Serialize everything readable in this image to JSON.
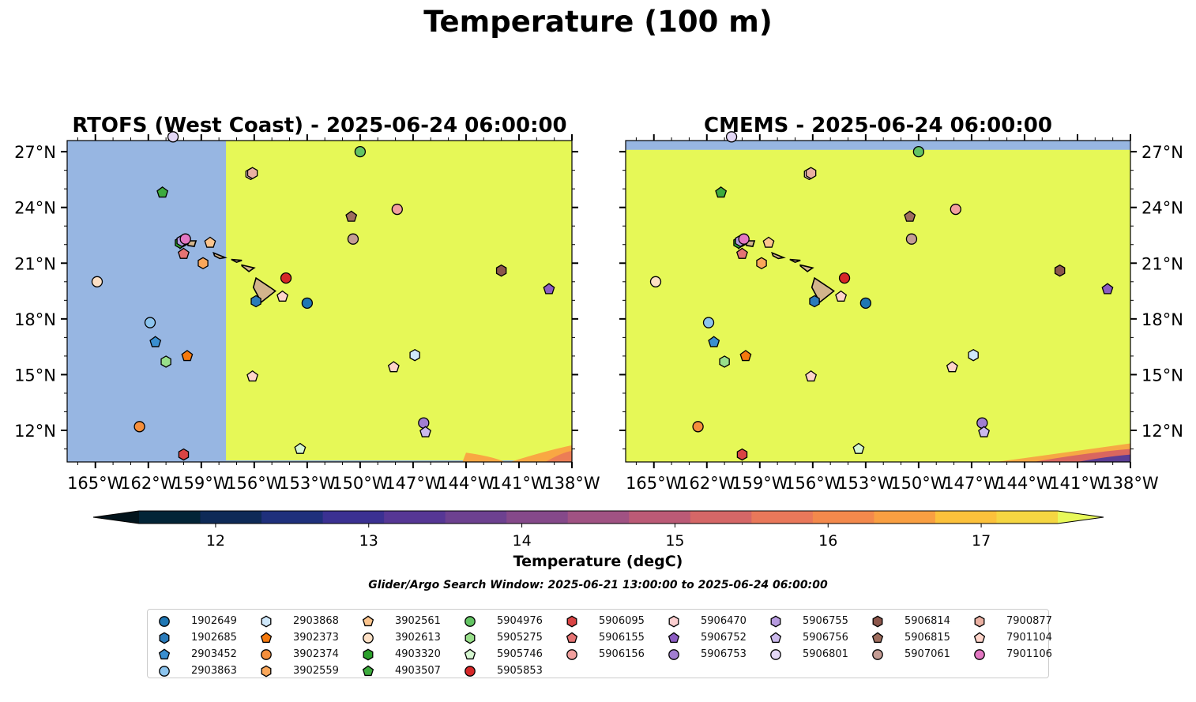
{
  "figure": {
    "title": "Temperature (100 m)",
    "window_note": "Glider/Argo Search Window: 2025-06-21 13:00:00 to 2025-06-24 06:00:00",
    "colorbar": {
      "label": "Temperature (degC)",
      "min": 11.5,
      "max": 17.5,
      "step": 0.5,
      "ticks": [
        "12",
        "13",
        "14",
        "15",
        "16",
        "17"
      ],
      "tick_values": [
        12,
        13,
        14,
        15,
        16,
        17
      ],
      "colors": [
        "#022437",
        "#0e2a57",
        "#1f307c",
        "#3b3192",
        "#563795",
        "#6d4190",
        "#85498a",
        "#a05283",
        "#bb5a76",
        "#d56767",
        "#e9785a",
        "#f3894c",
        "#f99f42",
        "#fcc13b",
        "#f5d642"
      ],
      "over_color": "#e8f95a",
      "under_color": "#03141c"
    }
  },
  "chart_data": [
    {
      "type": "map",
      "title": "RTOFS (West Coast) - 2025-06-24 06:00:00",
      "lon_range": [
        -166.6,
        -138.0
      ],
      "lat_range": [
        10.3,
        27.6
      ],
      "ocean_colors": {
        "land_mask": "#97b6e2",
        "warm": "#e6f857"
      },
      "x_tick_values": [
        -165,
        -162,
        -159,
        -156,
        -153,
        -150,
        -147,
        -144,
        -141,
        -138
      ],
      "x_tick_labels": [
        "165°W",
        "162°W",
        "159°W",
        "156°W",
        "153°W",
        "150°W",
        "147°W",
        "144°W",
        "141°W",
        "138°W"
      ],
      "y_tick_values": [
        12,
        15,
        18,
        21,
        24,
        27
      ],
      "y_tick_labels": [
        "12°N",
        "15°N",
        "18°N",
        "21°N",
        "24°N",
        "27°N"
      ],
      "y_axis_side": "left"
    },
    {
      "type": "map",
      "title": "CMEMS - 2025-06-24 06:00:00",
      "lon_range": [
        -166.6,
        -138.0
      ],
      "lat_range": [
        10.3,
        27.6
      ],
      "ocean_colors": {
        "land_mask": "#97b6e2",
        "warm": "#e6f857"
      },
      "x_tick_values": [
        -165,
        -162,
        -159,
        -156,
        -153,
        -150,
        -147,
        -144,
        -141,
        -138
      ],
      "x_tick_labels": [
        "165°W",
        "162°W",
        "159°W",
        "156°W",
        "153°W",
        "150°W",
        "147°W",
        "144°W",
        "141°W",
        "138°W"
      ],
      "y_tick_values": [
        12,
        15,
        18,
        21,
        24,
        27
      ],
      "y_tick_labels": [
        "12°N",
        "15°N",
        "18°N",
        "21°N",
        "24°N",
        "27°N"
      ],
      "y_axis_side": "right"
    }
  ],
  "floats": [
    {
      "id": "1902649",
      "marker": "circle",
      "color": "#1f77b4",
      "lon": -153.0,
      "lat": 18.85
    },
    {
      "id": "1902685",
      "marker": "hexagon",
      "color": "#2b7bba",
      "lon": -155.9,
      "lat": 18.95
    },
    {
      "id": "2903452",
      "marker": "pentagon",
      "color": "#3a8fd0",
      "lon": -161.6,
      "lat": 16.75
    },
    {
      "id": "2903863",
      "marker": "circle",
      "color": "#8cc4ee",
      "lon": -161.9,
      "lat": 17.8
    },
    {
      "id": "2903868",
      "marker": "hexagon",
      "color": "#cfe8fb",
      "lon": -146.9,
      "lat": 16.05
    },
    {
      "id": "3902373",
      "marker": "pentagon",
      "color": "#f5790e",
      "lon": -159.8,
      "lat": 16.0
    },
    {
      "id": "3902374",
      "marker": "circle",
      "color": "#f58f3c",
      "lon": -162.5,
      "lat": 12.2
    },
    {
      "id": "3902559",
      "marker": "hexagon",
      "color": "#fba75a",
      "lon": -158.9,
      "lat": 21.0
    },
    {
      "id": "3902561",
      "marker": "pentagon",
      "color": "#fbc48d",
      "lon": -158.5,
      "lat": 22.1
    },
    {
      "id": "3902613",
      "marker": "circle",
      "color": "#fde0c5",
      "lon": -164.9,
      "lat": 20.0
    },
    {
      "id": "4903320",
      "marker": "hexagon",
      "color": "#2ca02c",
      "lon": -160.2,
      "lat": 22.1
    },
    {
      "id": "4903507",
      "marker": "pentagon",
      "color": "#3dab3d",
      "lon": -161.2,
      "lat": 24.8
    },
    {
      "id": "4903320b",
      "marker": "hexagon",
      "color": "#2ca02c",
      "lon": -160.0,
      "lat": 22.2
    },
    {
      "id": "5904976",
      "marker": "circle",
      "color": "#63c463",
      "lon": -150.0,
      "lat": 27.0
    },
    {
      "id": "5905275",
      "marker": "hexagon",
      "color": "#98df8a",
      "lon": -161.0,
      "lat": 15.7
    },
    {
      "id": "5905746",
      "marker": "pentagon",
      "color": "#d6f7d1",
      "lon": -153.4,
      "lat": 11.0
    },
    {
      "id": "5905853",
      "marker": "circle",
      "color": "#d62728",
      "lon": -154.2,
      "lat": 20.2
    },
    {
      "id": "5906095",
      "marker": "hexagon",
      "color": "#d94444",
      "lon": -160.0,
      "lat": 10.7
    },
    {
      "id": "5906155",
      "marker": "pentagon",
      "color": "#e57373",
      "lon": -160.0,
      "lat": 21.5
    },
    {
      "id": "5906156",
      "marker": "circle",
      "color": "#f2a09e",
      "lon": -147.9,
      "lat": 23.9
    },
    {
      "id": "5906470",
      "marker": "hexagon",
      "color": "#fccfd0",
      "lon": -156.2,
      "lat": 25.8
    },
    {
      "id": "5906752",
      "marker": "pentagon",
      "color": "#8c5cc2",
      "lon": -139.3,
      "lat": 19.6
    },
    {
      "id": "5906753",
      "marker": "circle",
      "color": "#a17ed1",
      "lon": -146.4,
      "lat": 12.4
    },
    {
      "id": "5906755",
      "marker": "hexagon",
      "color": "#b79be0",
      "lon": -160.1,
      "lat": 22.2
    },
    {
      "id": "5906756",
      "marker": "pentagon",
      "color": "#cbb9ec",
      "lon": -146.3,
      "lat": 11.9
    },
    {
      "id": "5906801",
      "marker": "circle",
      "color": "#e3d7f5",
      "lon": -160.6,
      "lat": 27.8
    },
    {
      "id": "5906814",
      "marker": "hexagon",
      "color": "#8c564b",
      "lon": -142.0,
      "lat": 20.6
    },
    {
      "id": "5906815",
      "marker": "pentagon",
      "color": "#9e6d5e",
      "lon": -150.5,
      "lat": 23.5
    },
    {
      "id": "5907061",
      "marker": "circle",
      "color": "#c49c94",
      "lon": -150.4,
      "lat": 22.3
    },
    {
      "id": "7900877",
      "marker": "hexagon",
      "color": "#eab0a2",
      "lon": -156.1,
      "lat": 25.85
    },
    {
      "id": "7901104",
      "marker": "pentagon",
      "color": "#ffd4c9",
      "lon": -156.1,
      "lat": 14.9
    },
    {
      "id": "7901104b",
      "marker": "pentagon",
      "color": "#ffd4c9",
      "lon": -148.1,
      "lat": 15.4
    },
    {
      "id": "7901104c",
      "marker": "pentagon",
      "color": "#ffd4c9",
      "lon": -154.4,
      "lat": 19.2
    },
    {
      "id": "7901106",
      "marker": "circle",
      "color": "#e377c2",
      "lon": -159.9,
      "lat": 22.3
    }
  ],
  "legend": {
    "columns": [
      [
        {
          "id": "1902649",
          "marker": "circle",
          "color": "#1f77b4"
        },
        {
          "id": "1902685",
          "marker": "hexagon",
          "color": "#2b7bba"
        },
        {
          "id": "2903452",
          "marker": "pentagon",
          "color": "#3a8fd0"
        },
        {
          "id": "2903863",
          "marker": "circle",
          "color": "#8cc4ee"
        }
      ],
      [
        {
          "id": "2903868",
          "marker": "hexagon",
          "color": "#cfe8fb"
        },
        {
          "id": "3902373",
          "marker": "pentagon",
          "color": "#f5790e"
        },
        {
          "id": "3902374",
          "marker": "circle",
          "color": "#f58f3c"
        },
        {
          "id": "3902559",
          "marker": "hexagon",
          "color": "#fba75a"
        }
      ],
      [
        {
          "id": "3902561",
          "marker": "pentagon",
          "color": "#fbc48d"
        },
        {
          "id": "3902613",
          "marker": "circle",
          "color": "#fde0c5"
        },
        {
          "id": "4903320",
          "marker": "hexagon",
          "color": "#2ca02c"
        },
        {
          "id": "4903507",
          "marker": "pentagon",
          "color": "#3dab3d"
        }
      ],
      [
        {
          "id": "5904976",
          "marker": "circle",
          "color": "#63c463"
        },
        {
          "id": "5905275",
          "marker": "hexagon",
          "color": "#98df8a"
        },
        {
          "id": "5905746",
          "marker": "pentagon",
          "color": "#d6f7d1"
        },
        {
          "id": "5905853",
          "marker": "circle",
          "color": "#d62728"
        }
      ],
      [
        {
          "id": "5906095",
          "marker": "hexagon",
          "color": "#d94444"
        },
        {
          "id": "5906155",
          "marker": "pentagon",
          "color": "#e57373"
        },
        {
          "id": "5906156",
          "marker": "circle",
          "color": "#f2a09e"
        }
      ],
      [
        {
          "id": "5906470",
          "marker": "hexagon",
          "color": "#fccfd0"
        },
        {
          "id": "5906752",
          "marker": "pentagon",
          "color": "#8c5cc2"
        },
        {
          "id": "5906753",
          "marker": "circle",
          "color": "#a17ed1"
        }
      ],
      [
        {
          "id": "5906755",
          "marker": "hexagon",
          "color": "#b79be0"
        },
        {
          "id": "5906756",
          "marker": "pentagon",
          "color": "#cbb9ec"
        },
        {
          "id": "5906801",
          "marker": "circle",
          "color": "#e3d7f5"
        }
      ],
      [
        {
          "id": "5906814",
          "marker": "hexagon",
          "color": "#8c564b"
        },
        {
          "id": "5906815",
          "marker": "pentagon",
          "color": "#9e6d5e"
        },
        {
          "id": "5907061",
          "marker": "circle",
          "color": "#c49c94"
        }
      ],
      [
        {
          "id": "7900877",
          "marker": "hexagon",
          "color": "#eab0a2"
        },
        {
          "id": "7901104",
          "marker": "pentagon",
          "color": "#ffd4c9"
        },
        {
          "id": "7901106",
          "marker": "circle",
          "color": "#e377c2"
        }
      ]
    ]
  }
}
